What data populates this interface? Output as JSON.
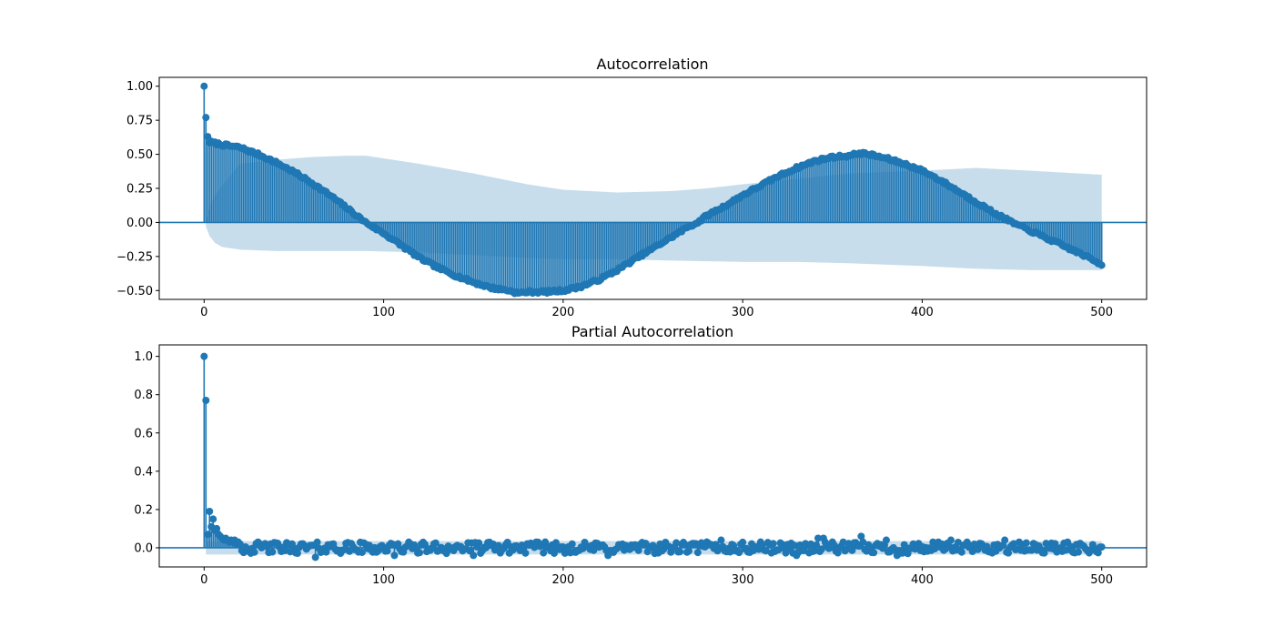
{
  "colors": {
    "stem": "#1f77b4",
    "confidence_band": "#1f77b4",
    "confidence_band_opacity": 0.25,
    "background": "#ffffff",
    "axis": "#000000"
  },
  "chart_data": [
    {
      "type": "stem",
      "title": "Autocorrelation",
      "xlabel": "",
      "ylabel": "",
      "xlim": [
        -25,
        525
      ],
      "ylim": [
        -0.565,
        1.065
      ],
      "xticks": [
        0,
        100,
        200,
        300,
        400,
        500
      ],
      "xtick_labels": [
        "0",
        "100",
        "200",
        "300",
        "400",
        "500"
      ],
      "yticks": [
        -0.5,
        -0.25,
        0.0,
        0.25,
        0.5,
        0.75,
        1.0
      ],
      "ytick_labels": [
        "−0.50",
        "−0.25",
        "0.00",
        "0.25",
        "0.50",
        "0.75",
        "1.00"
      ],
      "grid": false,
      "lags": [
        0,
        500
      ],
      "lag_values": [
        [
          0,
          1.0
        ],
        [
          1,
          0.77
        ],
        [
          2,
          0.63
        ]
      ],
      "series_shape": [
        [
          3,
          0.59
        ],
        [
          10,
          0.57
        ],
        [
          20,
          0.55
        ],
        [
          30,
          0.5
        ],
        [
          40,
          0.44
        ],
        [
          50,
          0.37
        ],
        [
          60,
          0.29
        ],
        [
          70,
          0.2
        ],
        [
          80,
          0.1
        ],
        [
          90,
          0.0
        ],
        [
          100,
          -0.08
        ],
        [
          110,
          -0.17
        ],
        [
          120,
          -0.26
        ],
        [
          130,
          -0.33
        ],
        [
          140,
          -0.39
        ],
        [
          150,
          -0.44
        ],
        [
          160,
          -0.48
        ],
        [
          170,
          -0.5
        ],
        [
          175,
          -0.52
        ],
        [
          180,
          -0.51
        ],
        [
          190,
          -0.51
        ],
        [
          200,
          -0.5
        ],
        [
          210,
          -0.47
        ],
        [
          220,
          -0.42
        ],
        [
          230,
          -0.35
        ],
        [
          240,
          -0.27
        ],
        [
          250,
          -0.19
        ],
        [
          260,
          -0.11
        ],
        [
          270,
          -0.03
        ],
        [
          275,
          0.0
        ],
        [
          280,
          0.05
        ],
        [
          290,
          0.12
        ],
        [
          300,
          0.2
        ],
        [
          310,
          0.27
        ],
        [
          320,
          0.34
        ],
        [
          330,
          0.4
        ],
        [
          340,
          0.45
        ],
        [
          350,
          0.48
        ],
        [
          360,
          0.49
        ],
        [
          365,
          0.51
        ],
        [
          370,
          0.5
        ],
        [
          380,
          0.47
        ],
        [
          390,
          0.43
        ],
        [
          400,
          0.38
        ],
        [
          410,
          0.31
        ],
        [
          420,
          0.23
        ],
        [
          430,
          0.15
        ],
        [
          440,
          0.07
        ],
        [
          450,
          0.0
        ],
        [
          460,
          -0.06
        ],
        [
          470,
          -0.12
        ],
        [
          480,
          -0.18
        ],
        [
          490,
          -0.24
        ],
        [
          500,
          -0.31
        ]
      ],
      "confint_upper": [
        [
          1,
          0.02
        ],
        [
          3,
          0.12
        ],
        [
          6,
          0.2
        ],
        [
          10,
          0.27
        ],
        [
          20,
          0.43
        ],
        [
          40,
          0.46
        ],
        [
          60,
          0.48
        ],
        [
          80,
          0.49
        ],
        [
          90,
          0.49
        ],
        [
          120,
          0.43
        ],
        [
          150,
          0.36
        ],
        [
          180,
          0.28
        ],
        [
          200,
          0.24
        ],
        [
          230,
          0.22
        ],
        [
          260,
          0.23
        ],
        [
          280,
          0.25
        ],
        [
          300,
          0.28
        ],
        [
          330,
          0.32
        ],
        [
          360,
          0.36
        ],
        [
          400,
          0.38
        ],
        [
          430,
          0.4
        ],
        [
          460,
          0.38
        ],
        [
          500,
          0.35
        ]
      ],
      "confint_lower": [
        [
          1,
          -0.03
        ],
        [
          3,
          -0.1
        ],
        [
          6,
          -0.15
        ],
        [
          10,
          -0.18
        ],
        [
          20,
          -0.2
        ],
        [
          40,
          -0.21
        ],
        [
          60,
          -0.21
        ],
        [
          80,
          -0.21
        ],
        [
          90,
          -0.21
        ],
        [
          120,
          -0.22
        ],
        [
          150,
          -0.24
        ],
        [
          180,
          -0.26
        ],
        [
          200,
          -0.27
        ],
        [
          230,
          -0.27
        ],
        [
          260,
          -0.28
        ],
        [
          300,
          -0.29
        ],
        [
          330,
          -0.29
        ],
        [
          360,
          -0.3
        ],
        [
          400,
          -0.32
        ],
        [
          430,
          -0.34
        ],
        [
          460,
          -0.35
        ],
        [
          500,
          -0.35
        ]
      ]
    },
    {
      "type": "stem",
      "title": "Partial Autocorrelation",
      "xlabel": "",
      "ylabel": "",
      "xlim": [
        -25,
        525
      ],
      "ylim": [
        -0.1,
        1.06
      ],
      "xticks": [
        0,
        100,
        200,
        300,
        400,
        500
      ],
      "xtick_labels": [
        "0",
        "100",
        "200",
        "300",
        "400",
        "500"
      ],
      "yticks": [
        0.0,
        0.2,
        0.4,
        0.6,
        0.8,
        1.0
      ],
      "ytick_labels": [
        "0.0",
        "0.2",
        "0.4",
        "0.6",
        "0.8",
        "1.0"
      ],
      "grid": false,
      "lags": [
        0,
        500
      ],
      "lag_values": [
        [
          0,
          1.0
        ],
        [
          1,
          0.77
        ],
        [
          2,
          0.07
        ],
        [
          3,
          0.19
        ],
        [
          4,
          0.11
        ],
        [
          5,
          0.15
        ],
        [
          6,
          0.09
        ],
        [
          7,
          0.1
        ],
        [
          8,
          0.07
        ],
        [
          9,
          0.06
        ],
        [
          10,
          0.05
        ],
        [
          11,
          0.04
        ],
        [
          12,
          0.05
        ],
        [
          13,
          0.04
        ],
        [
          14,
          0.03
        ],
        [
          15,
          0.04
        ],
        [
          16,
          0.03
        ],
        [
          17,
          0.04
        ],
        [
          18,
          0.02
        ],
        [
          19,
          0.03
        ],
        [
          20,
          0.02
        ]
      ],
      "noise_amplitude": 0.03,
      "notable_points": [
        [
          37,
          0.02
        ],
        [
          62,
          -0.05
        ],
        [
          72,
          0.02
        ],
        [
          106,
          -0.04
        ],
        [
          115,
          0.02
        ],
        [
          150,
          -0.04
        ],
        [
          190,
          0.03
        ],
        [
          205,
          0.02
        ],
        [
          225,
          -0.04
        ],
        [
          280,
          0.03
        ],
        [
          288,
          0.04
        ],
        [
          310,
          0.03
        ],
        [
          330,
          -0.04
        ],
        [
          342,
          0.05
        ],
        [
          345,
          0.05
        ],
        [
          350,
          0.03
        ],
        [
          366,
          0.06
        ],
        [
          380,
          0.04
        ],
        [
          386,
          -0.04
        ],
        [
          392,
          -0.03
        ],
        [
          416,
          0.04
        ],
        [
          446,
          0.04
        ]
      ],
      "confint_upper": 0.035,
      "confint_lower": -0.035
    }
  ]
}
